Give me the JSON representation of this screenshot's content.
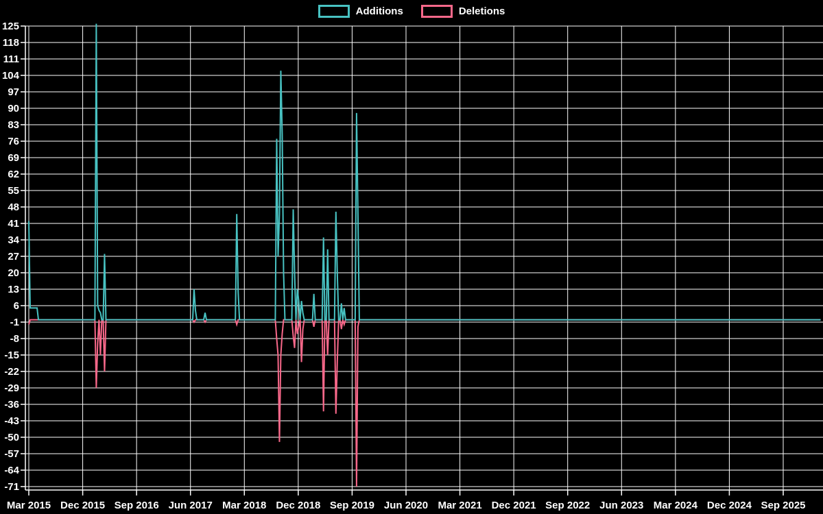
{
  "legend": {
    "items": [
      {
        "label": "Additions",
        "color": "#48c2c2"
      },
      {
        "label": "Deletions",
        "color": "#f9688a"
      }
    ]
  },
  "chart_data": {
    "type": "line",
    "legend_position": "top-center",
    "grid": true,
    "colors": {
      "background": "#000000",
      "grid": "#ffffff",
      "axis": "#ffffff",
      "text": "#ffffff"
    },
    "x_axis": {
      "tick_labels": [
        "Mar 2015",
        "Dec 2015",
        "Sep 2016",
        "Jun 2017",
        "Mar 2018",
        "Dec 2018",
        "Sep 2019",
        "Jun 2020",
        "Mar 2021",
        "Dec 2021",
        "Sep 2022",
        "Jun 2023",
        "Mar 2024",
        "Dec 2024",
        "Sep 2025"
      ],
      "tick_interval_months": 9,
      "weeks_per_tick": 39.13,
      "weeks_total": 576
    },
    "y_axis": {
      "min": -71,
      "max": 125,
      "step": 7,
      "tick_labels": [
        125,
        118,
        111,
        104,
        97,
        90,
        83,
        76,
        69,
        62,
        55,
        48,
        41,
        34,
        27,
        20,
        13,
        6,
        -1,
        -8,
        -15,
        -22,
        -29,
        -36,
        -43,
        -50,
        -57,
        -64,
        -71
      ]
    },
    "series": [
      {
        "name": "Additions",
        "color": "#48c2c2",
        "baseline": 0,
        "events": {
          "0": 42,
          "1": 5,
          "2": 5,
          "3": 5,
          "4": 5,
          "5": 5,
          "6": 5,
          "49": 126,
          "50": 6,
          "51": 4,
          "52": 3,
          "55": 28,
          "120": 13,
          "121": 4,
          "128": 3,
          "151": 45,
          "152": 12,
          "180": 77,
          "181": 27,
          "182": 45,
          "183": 106,
          "184": 79,
          "185": 20,
          "192": 47,
          "193": 20,
          "195": 13,
          "196": 8,
          "198": 8,
          "199": 3,
          "207": 11,
          "214": 35,
          "217": 30,
          "223": 46,
          "224": 20,
          "227": 7,
          "229": 5,
          "238": 88,
          "239": 45
        }
      },
      {
        "name": "Deletions",
        "color": "#f9688a",
        "baseline": 0,
        "events": {
          "0": -2,
          "49": -29,
          "50": -10,
          "52": -15,
          "55": -22,
          "120": -1,
          "128": -1,
          "151": -2,
          "180": -8,
          "181": -15,
          "182": -52,
          "183": -15,
          "184": -6,
          "192": -7,
          "193": -12,
          "195": -6,
          "196": -3,
          "198": -18,
          "199": -4,
          "207": -3,
          "214": -39,
          "217": -15,
          "223": -40,
          "224": -18,
          "227": -4,
          "229": -2,
          "238": -71,
          "239": -3
        }
      }
    ]
  }
}
